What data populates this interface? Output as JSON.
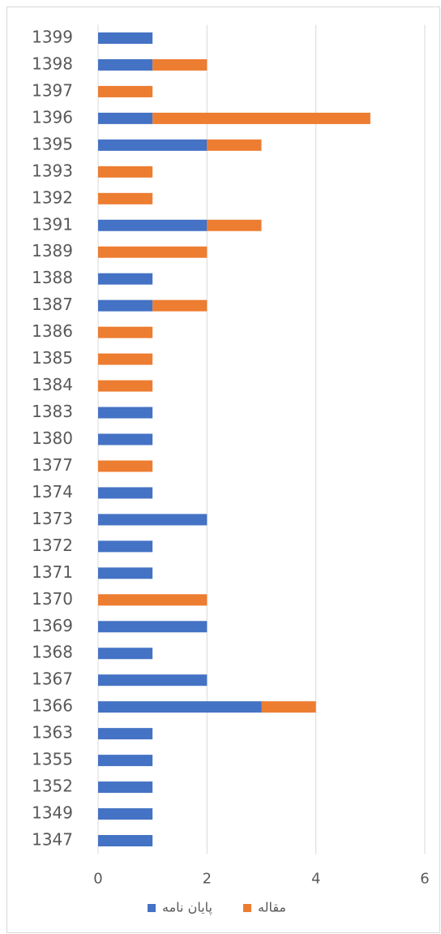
{
  "chart_data": {
    "type": "stacked-barh",
    "categories": [
      "1399",
      "1398",
      "1397",
      "1396",
      "1395",
      "1393",
      "1392",
      "1391",
      "1389",
      "1388",
      "1387",
      "1386",
      "1385",
      "1384",
      "1383",
      "1380",
      "1377",
      "1374",
      "1373",
      "1372",
      "1371",
      "1370",
      "1369",
      "1368",
      "1367",
      "1366",
      "1363",
      "1355",
      "1352",
      "1349",
      "1347"
    ],
    "series": [
      {
        "name": "پایان نامه",
        "color": "#4472c4",
        "values": [
          1,
          1,
          null,
          1,
          2,
          null,
          null,
          2,
          null,
          1,
          1,
          null,
          null,
          null,
          1,
          1,
          null,
          1,
          2,
          1,
          1,
          null,
          2,
          1,
          2,
          3,
          1,
          1,
          1,
          1,
          1
        ]
      },
      {
        "name": "مقاله",
        "color": "#ed7d31",
        "values": [
          null,
          1,
          1,
          4,
          1,
          1,
          1,
          1,
          2,
          null,
          1,
          1,
          1,
          1,
          null,
          null,
          1,
          null,
          null,
          null,
          null,
          2,
          null,
          null,
          null,
          1,
          null,
          null,
          null,
          null,
          null
        ]
      }
    ],
    "xlim": [
      0,
      6
    ],
    "xticks": [
      0,
      2,
      4,
      6
    ],
    "grid": true,
    "legend": "bottom"
  }
}
